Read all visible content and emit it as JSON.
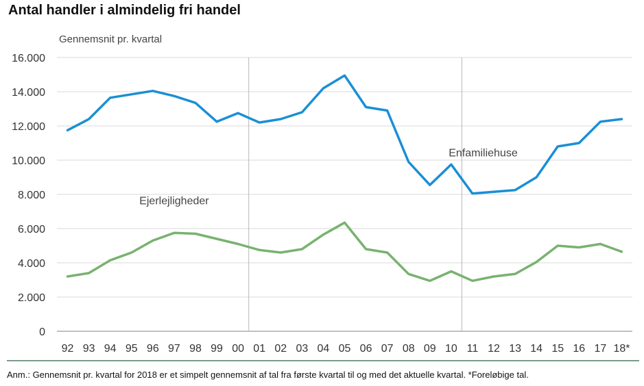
{
  "title": "Antal handler i almindelig fri handel",
  "note": "Anm.: Gennemsnit pr. kvartal for 2018 er et simpelt gennemsnit af tal fra første kvartal til og med det aktuelle kvartal. *Foreløbige tal.",
  "chart_data": {
    "type": "line",
    "title": "Antal handler i almindelig fri handel",
    "ylabel": "Gennemsnit pr. kvartal",
    "xlabel": "",
    "ylim": [
      0,
      16000
    ],
    "yticks": [
      0,
      2000,
      4000,
      6000,
      8000,
      10000,
      12000,
      14000,
      16000
    ],
    "ytick_labels": [
      "0",
      "2.000",
      "4.000",
      "6.000",
      "8.000",
      "10.000",
      "12.000",
      "14.000",
      "16.000"
    ],
    "categories": [
      "92",
      "93",
      "94",
      "95",
      "96",
      "97",
      "98",
      "99",
      "00",
      "01",
      "02",
      "03",
      "04",
      "05",
      "06",
      "07",
      "08",
      "09",
      "10",
      "11",
      "12",
      "13",
      "14",
      "15",
      "16",
      "17",
      "18*"
    ],
    "grid": "horizontal",
    "series": [
      {
        "name": "Enfamiliehuse",
        "color": "#1a8fd4",
        "values": [
          11750,
          12400,
          13650,
          13850,
          14050,
          13750,
          13350,
          12250,
          12750,
          12200,
          12400,
          12800,
          14200,
          14950,
          13100,
          12900,
          9900,
          8550,
          9750,
          8050,
          8150,
          8250,
          9000,
          10800,
          11000,
          12250,
          12400
        ]
      },
      {
        "name": "Ejerlejligheder",
        "color": "#78b26f",
        "values": [
          3200,
          3400,
          4150,
          4600,
          5300,
          5750,
          5700,
          5400,
          5100,
          4750,
          4600,
          4800,
          5650,
          6350,
          4800,
          4600,
          3350,
          2950,
          3500,
          2950,
          3200,
          3350,
          4050,
          5000,
          4900,
          5100,
          4650
        ]
      }
    ],
    "vertical_markers": [
      "01",
      "11"
    ]
  }
}
